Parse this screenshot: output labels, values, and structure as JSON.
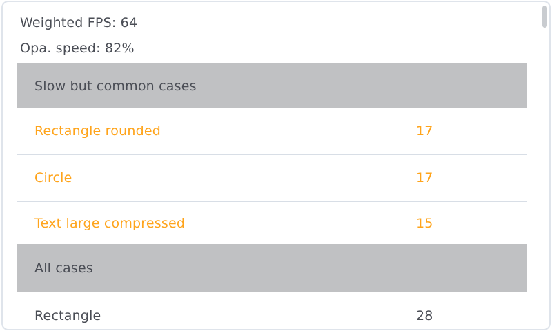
{
  "stats": {
    "weighted_fps": "Weighted FPS: 64",
    "opa_speed": "Opa. speed: 82%"
  },
  "benchmark_table": {
    "sections": [
      {
        "header": "Slow but common cases",
        "rows": [
          {
            "label": "Rectangle rounded",
            "value": "17",
            "highlighted": true
          },
          {
            "label": "Circle",
            "value": "17",
            "highlighted": true
          },
          {
            "label": "Text large compressed",
            "value": "15",
            "highlighted": true
          }
        ]
      },
      {
        "header": "All cases",
        "rows": [
          {
            "label": "Rectangle",
            "value": "28",
            "highlighted": false
          }
        ]
      }
    ]
  },
  "colors": {
    "accent": "#ffa41b",
    "header_bg": "#c0c1c3",
    "text": "#4a4d55",
    "divider": "#d8dee6",
    "scrollbar": "#c9ccd0",
    "panel_border": "#dfe4eb"
  }
}
